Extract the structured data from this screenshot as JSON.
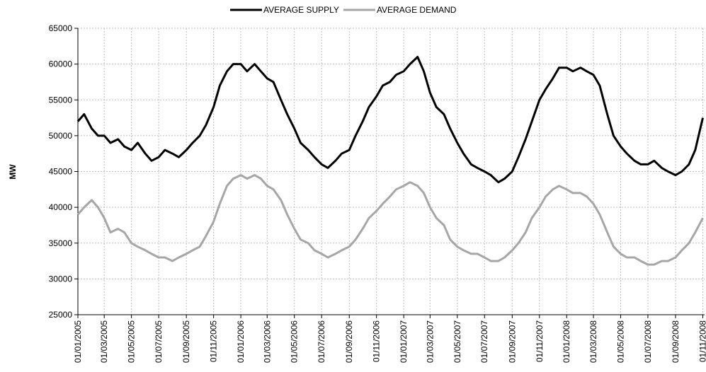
{
  "chart_data": {
    "type": "line",
    "y_label": "MW",
    "x": [
      "01/01/2005",
      "15/01/2005",
      "01/02/2005",
      "15/02/2005",
      "01/03/2005",
      "15/03/2005",
      "01/04/2005",
      "15/04/2005",
      "01/05/2005",
      "15/05/2005",
      "01/06/2005",
      "15/06/2005",
      "01/07/2005",
      "15/07/2005",
      "01/08/2005",
      "15/08/2005",
      "01/09/2005",
      "15/09/2005",
      "01/10/2005",
      "15/10/2005",
      "01/11/2005",
      "15/11/2005",
      "01/12/2005",
      "15/12/2005",
      "01/01/2006",
      "15/01/2006",
      "01/02/2006",
      "15/02/2006",
      "01/03/2006",
      "15/03/2006",
      "01/04/2006",
      "15/04/2006",
      "01/05/2006",
      "15/05/2006",
      "01/06/2006",
      "15/06/2006",
      "01/07/2006",
      "15/07/2006",
      "01/08/2006",
      "15/08/2006",
      "01/09/2006",
      "15/09/2006",
      "01/10/2006",
      "15/10/2006",
      "01/11/2006",
      "15/11/2006",
      "01/12/2006",
      "15/12/2006",
      "01/01/2007",
      "15/01/2007",
      "01/02/2007",
      "15/02/2007",
      "01/03/2007",
      "15/03/2007",
      "01/04/2007",
      "15/04/2007",
      "01/05/2007",
      "15/05/2007",
      "01/06/2007",
      "15/06/2007",
      "01/07/2007",
      "15/07/2007",
      "01/08/2007",
      "15/08/2007",
      "01/09/2007",
      "15/09/2007",
      "01/10/2007",
      "15/10/2007",
      "01/11/2007",
      "15/11/2007",
      "01/12/2007",
      "15/12/2007",
      "01/01/2008",
      "15/01/2008",
      "01/02/2008",
      "15/02/2008",
      "01/03/2008",
      "15/03/2008",
      "01/04/2008",
      "15/04/2008",
      "01/05/2008",
      "15/05/2008",
      "01/06/2008",
      "15/06/2008",
      "01/07/2008",
      "15/07/2008",
      "01/08/2008",
      "15/08/2008",
      "01/09/2008",
      "15/09/2008",
      "01/10/2008",
      "15/10/2008",
      "01/11/2008"
    ],
    "series": [
      {
        "name": "AVERAGE SUPPLY",
        "color": "#000000",
        "values": [
          52000,
          53000,
          51000,
          50000,
          50000,
          49000,
          49500,
          48500,
          48000,
          49000,
          47500,
          46500,
          47000,
          48000,
          47500,
          47000,
          48000,
          49000,
          50000,
          51500,
          54000,
          57000,
          59000,
          60000,
          60000,
          59000,
          60000,
          59000,
          58000,
          57500,
          55000,
          53000,
          51000,
          49000,
          48000,
          47000,
          46000,
          45500,
          46500,
          47500,
          48000,
          50000,
          52000,
          54000,
          55500,
          57000,
          57500,
          58500,
          59000,
          60000,
          61000,
          59000,
          56000,
          54000,
          53000,
          51000,
          49000,
          47500,
          46000,
          45500,
          45000,
          44500,
          43500,
          44000,
          45000,
          47000,
          49500,
          52000,
          55000,
          56500,
          58000,
          59500,
          59500,
          59000,
          59500,
          59000,
          58500,
          57000,
          53000,
          50000,
          48500,
          47500,
          46500,
          46000,
          46000,
          46500,
          45500,
          45000,
          44500,
          45000,
          46000,
          48000,
          52500
        ]
      },
      {
        "name": "AVERAGE DEMAND",
        "color": "#a6a6a6",
        "values": [
          39000,
          40000,
          41000,
          40000,
          38500,
          36500,
          37000,
          36500,
          35000,
          34500,
          34000,
          33500,
          33000,
          33000,
          32500,
          33000,
          33500,
          34000,
          34500,
          36000,
          38000,
          40500,
          43000,
          44000,
          44500,
          44000,
          44500,
          44000,
          43000,
          42500,
          41000,
          39000,
          37000,
          35500,
          35000,
          34000,
          33500,
          33000,
          33500,
          34000,
          34500,
          35500,
          37000,
          38500,
          39500,
          40500,
          41500,
          42500,
          43000,
          43500,
          43000,
          42000,
          40000,
          38500,
          37500,
          35500,
          34500,
          34000,
          33500,
          33500,
          33000,
          32500,
          32500,
          33000,
          34000,
          35000,
          36500,
          38500,
          40000,
          41500,
          42500,
          43000,
          42500,
          42000,
          42000,
          41500,
          40500,
          39000,
          36500,
          34500,
          33500,
          33000,
          33000,
          32500,
          32000,
          32000,
          32500,
          32500,
          33000,
          34000,
          35000,
          36500,
          38500
        ]
      }
    ],
    "xlim": [
      "01/01/2005",
      "05/11/2008"
    ],
    "xticks": [
      "01/01/2005",
      "01/03/2005",
      "01/05/2005",
      "01/07/2005",
      "01/09/2005",
      "01/11/2005",
      "01/01/2006",
      "01/03/2006",
      "01/05/2006",
      "01/07/2006",
      "01/09/2006",
      "01/11/2006",
      "01/01/2007",
      "01/03/2007",
      "01/05/2007",
      "01/07/2007",
      "01/09/2007",
      "01/11/2007",
      "01/01/2008",
      "01/03/2008",
      "01/05/2008",
      "01/07/2008",
      "01/09/2008",
      "01/11/2008"
    ],
    "ylim": [
      25000,
      65000
    ],
    "yticks": [
      25000,
      30000,
      35000,
      40000,
      45000,
      50000,
      55000,
      60000,
      65000
    ],
    "grid": true,
    "legend": "top"
  }
}
